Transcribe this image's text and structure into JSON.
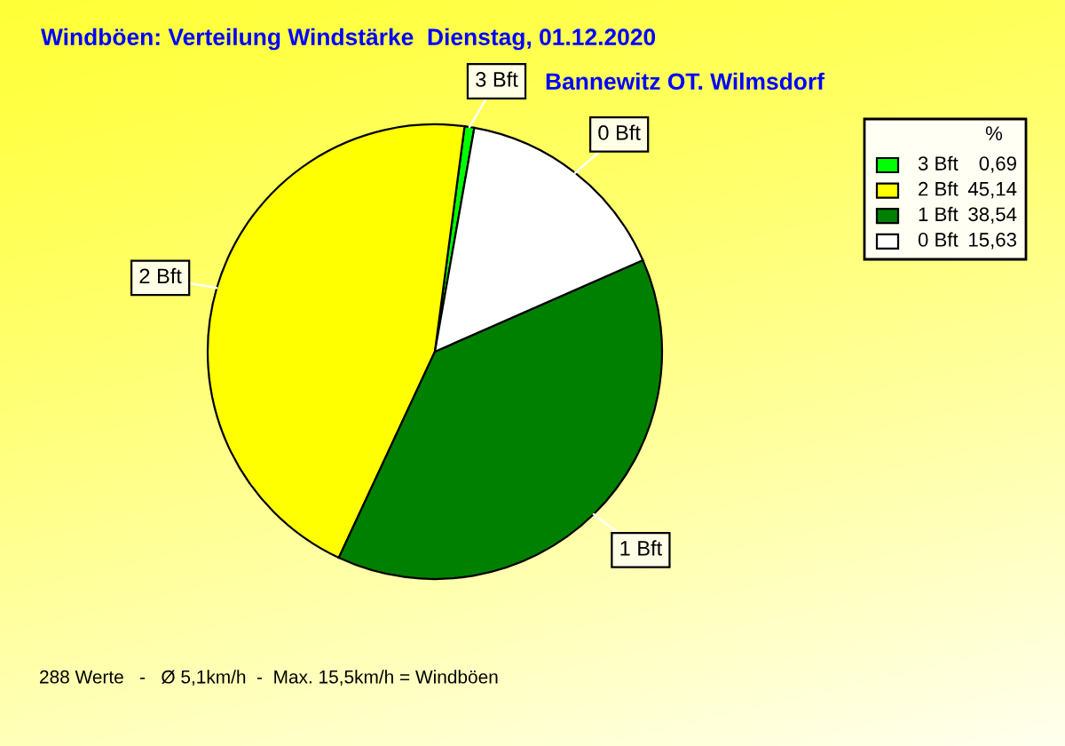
{
  "chart_data": {
    "type": "pie",
    "title": "Windböen: Verteilung Windstärke  Dienstag, 01.12.2020",
    "subtitle": "Bannewitz OT. Wilmsdorf",
    "categories": [
      "3 Bft",
      "2 Bft",
      "1 Bft",
      "0 Bft"
    ],
    "values": [
      0.69,
      45.14,
      38.54,
      15.63
    ],
    "value_labels": [
      "0,69",
      "45,14",
      "38,54",
      "15,63"
    ],
    "colors": [
      "#00ff00",
      "#ffff00",
      "#008000",
      "#ffffff"
    ],
    "legend_title": "%",
    "legend": "top right",
    "annotations": [
      "288 Werte   -   Ø 5,1km/h  -  Max. 15,5km/h = Windböen"
    ]
  }
}
